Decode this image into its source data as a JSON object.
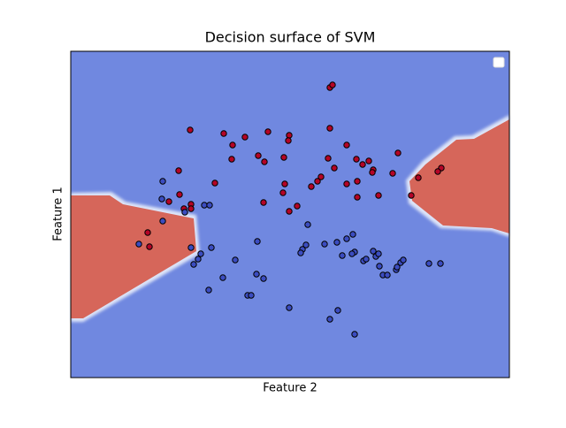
{
  "chart_data": {
    "type": "scatter",
    "title": "Decision surface of SVM",
    "xlabel": "Feature 2",
    "ylabel": "Feature 1",
    "xlim": [
      0,
      496
    ],
    "ylim": [
      0,
      369
    ],
    "background": "#7088e0",
    "region_color": "#d6665a",
    "series": [
      {
        "color": "#b40426",
        "x": [
          293,
          296,
          135,
          173,
          197,
          223,
          247,
          246,
          183,
          182,
          212,
          219,
          241,
          293,
          312,
          291,
          298,
          323,
          330,
          337,
          370,
          342,
          341,
          364,
          419,
          415,
          393,
          385,
          324,
          312,
          283,
          279,
          272,
          242,
          240,
          218,
          247,
          256,
          163,
          122,
          123,
          111,
          136,
          136,
          128,
          87,
          89,
          324,
          348
        ],
        "values": [
          328,
          331,
          280,
          276,
          272,
          278,
          274,
          268,
          263,
          247,
          251,
          244,
          249,
          282,
          263,
          248,
          237,
          247,
          241,
          245,
          254,
          235,
          232,
          231,
          237,
          233,
          226,
          206,
          222,
          219,
          227,
          222,
          216,
          219,
          209,
          198,
          188,
          194,
          220,
          234,
          207,
          199,
          196,
          191,
          191,
          164,
          148,
          204,
          206
        ]
      },
      {
        "color": "#3b4cc0",
        "x": [
          104,
          103,
          129,
          151,
          157,
          104,
          77,
          136,
          159,
          147,
          144,
          139,
          186,
          172,
          156,
          200,
          204,
          210,
          218,
          211,
          247,
          268,
          266,
          262,
          260,
          287,
          301,
          312,
          319,
          307,
          321,
          318,
          331,
          334,
          342,
          345,
          348,
          349,
          368,
          369,
          373,
          376,
          353,
          358,
          405,
          418,
          302,
          293,
          321
        ],
        "values": [
          222,
          202,
          187,
          195,
          195,
          177,
          151,
          147,
          147,
          140,
          134,
          128,
          133,
          113,
          99,
          93,
          93,
          117,
          112,
          154,
          79,
          173,
          150,
          145,
          141,
          151,
          153,
          157,
          162,
          138,
          142,
          140,
          132,
          134,
          143,
          137,
          140,
          126,
          122,
          125,
          130,
          133,
          116,
          116,
          129,
          129,
          76,
          66,
          49
        ]
      }
    ]
  }
}
